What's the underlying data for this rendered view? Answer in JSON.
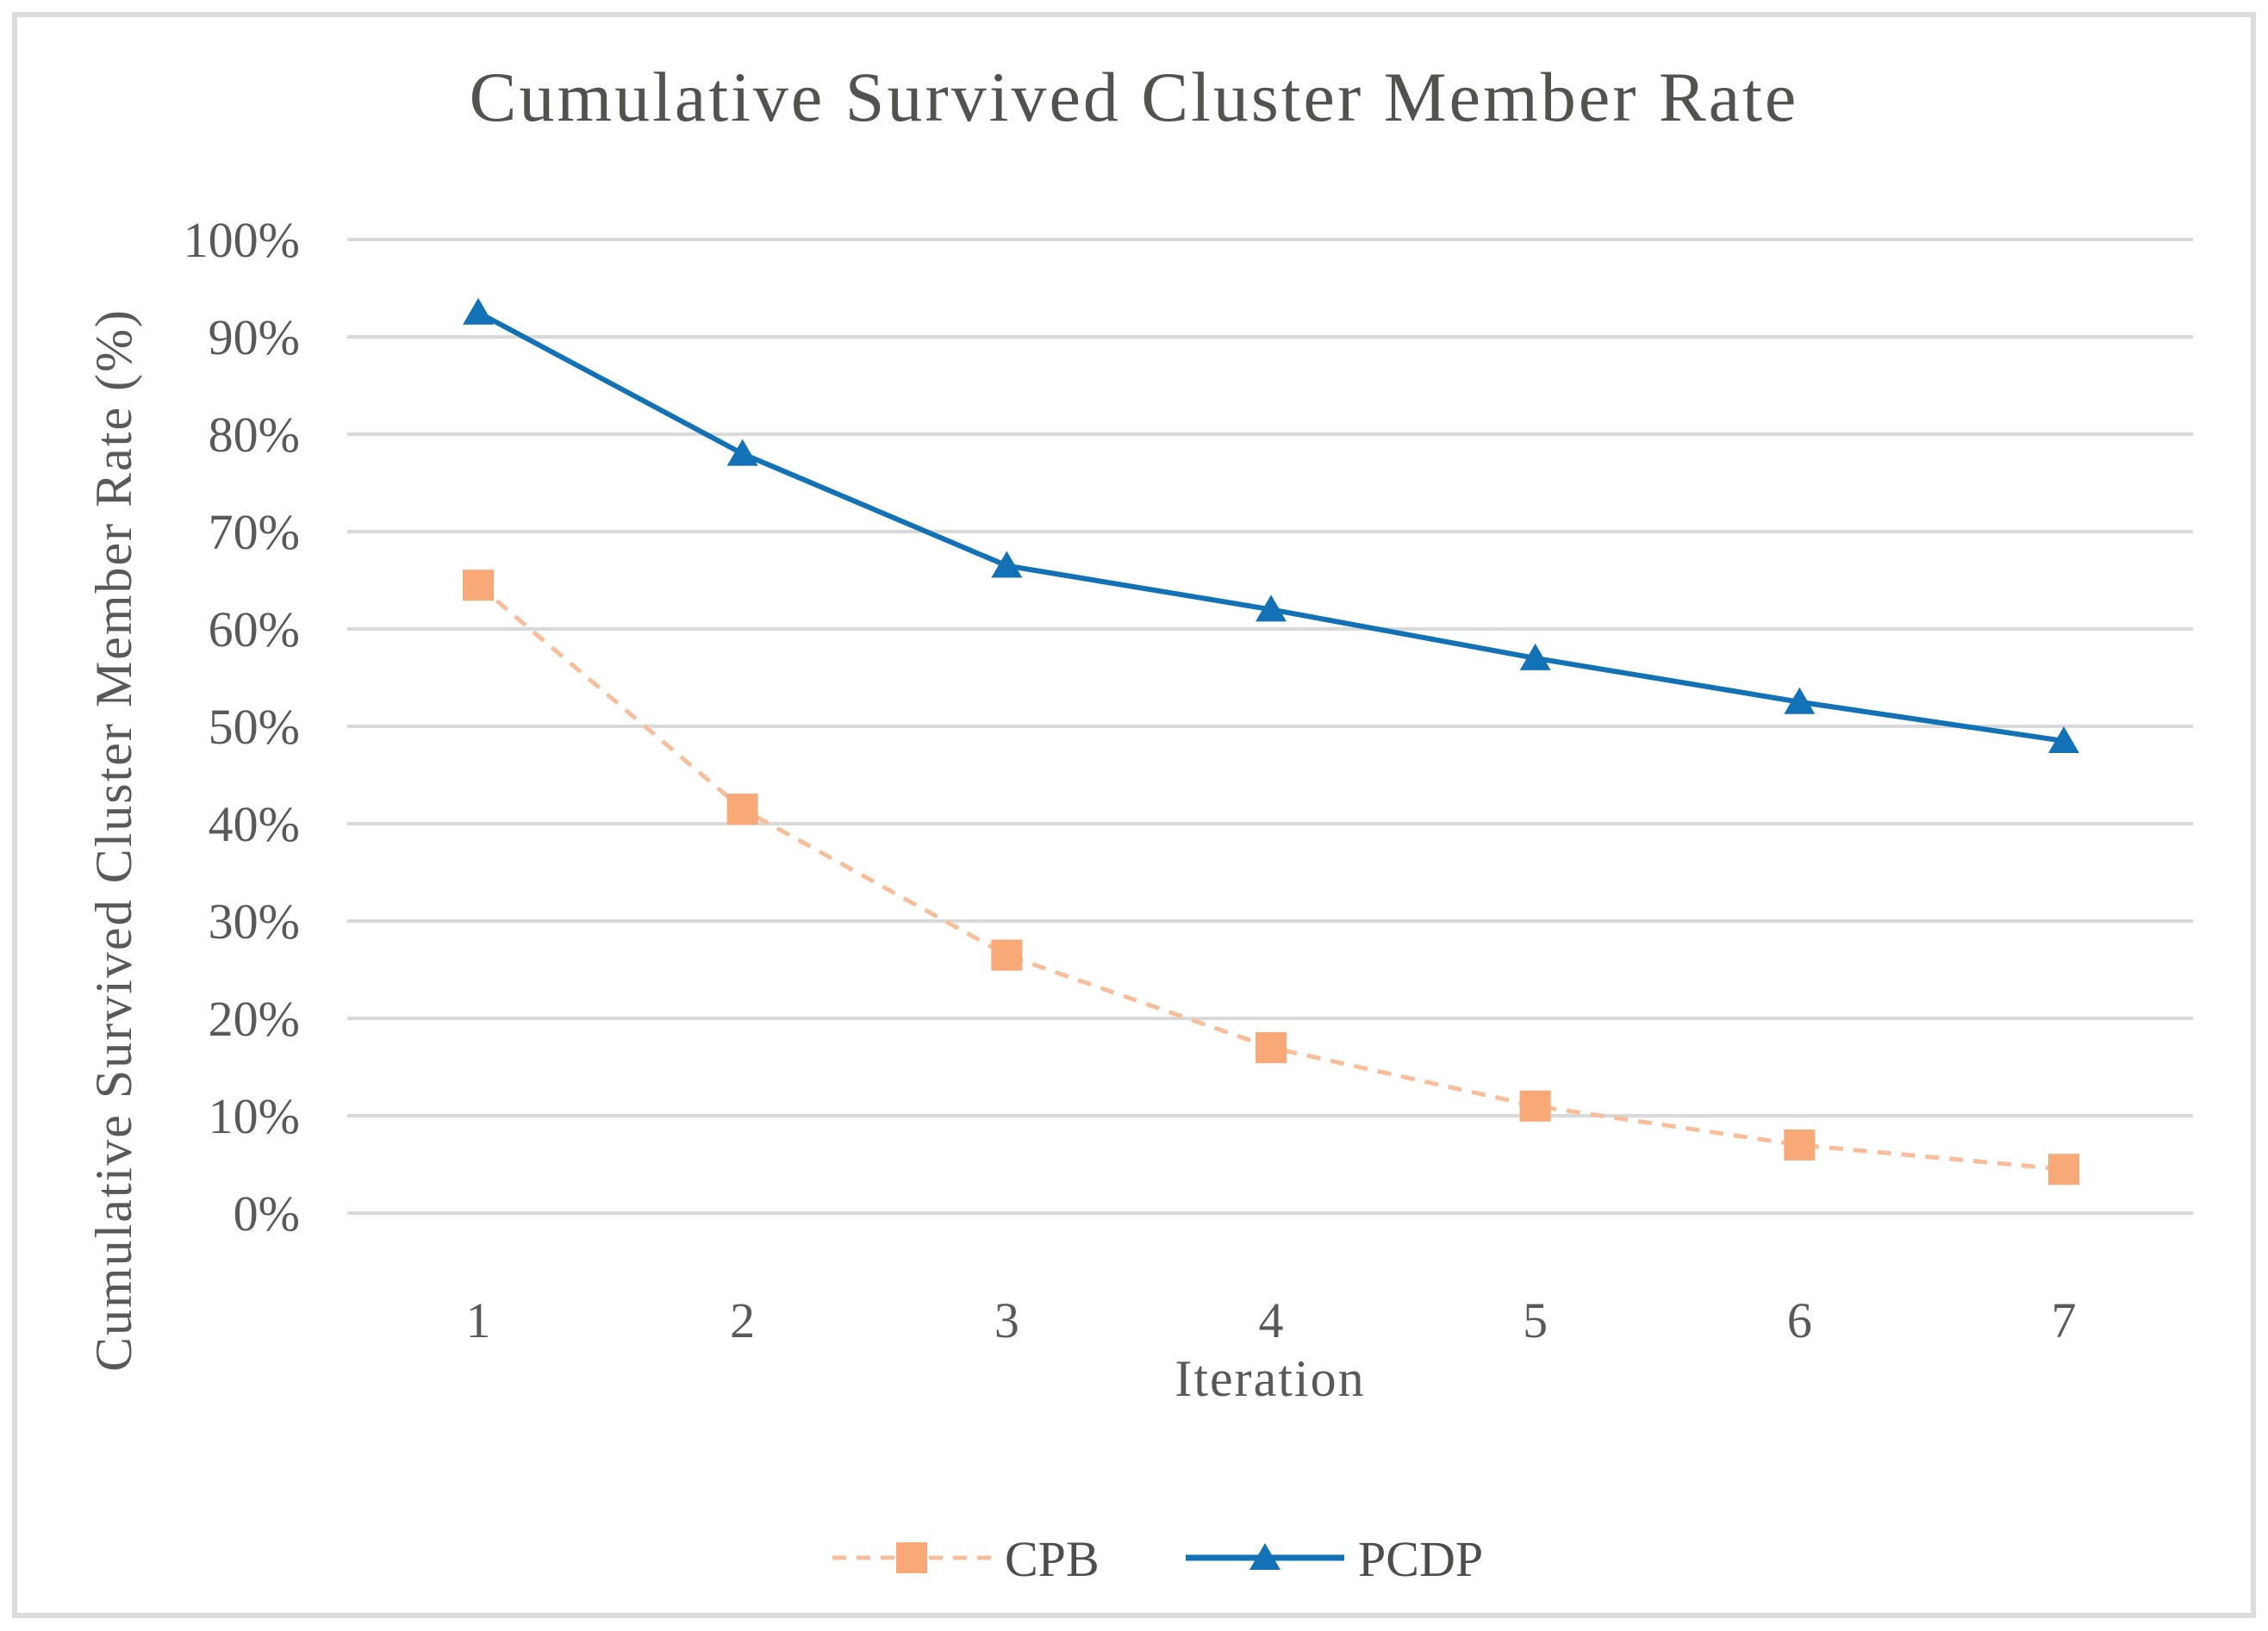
{
  "window": {
    "background": "#FFFFFF",
    "frame_border_color": "#DCDCDC"
  },
  "chart_data": {
    "type": "line",
    "title": "Cumulative Survived Cluster Member Rate",
    "xlabel": "Iteration",
    "ylabel": "Cumulative Survived Cluster Member Rate (%)",
    "categories": [
      "1",
      "2",
      "3",
      "4",
      "5",
      "6",
      "7"
    ],
    "x_values": [
      1,
      2,
      3,
      4,
      5,
      6,
      7
    ],
    "y_ticks": [
      "0%",
      "10%",
      "20%",
      "30%",
      "40%",
      "50%",
      "60%",
      "70%",
      "80%",
      "90%",
      "100%"
    ],
    "ylim": [
      0,
      100
    ],
    "grid": true,
    "legend_position": "bottom-center",
    "series": [
      {
        "name": "CPB",
        "marker": "square",
        "line_style": "dashed",
        "marker_color": "#F9A877",
        "line_color": "#F8BE9B",
        "values": [
          64.5,
          41.5,
          26.5,
          17,
          11,
          7,
          4.5
        ]
      },
      {
        "name": "PCDP",
        "marker": "triangle",
        "line_style": "solid",
        "marker_color": "#1272B5",
        "line_color": "#1272B5",
        "values": [
          92.5,
          78,
          66.5,
          62,
          57,
          52.5,
          48.5
        ]
      }
    ]
  },
  "style": {
    "gridline_color": "#D9D9D9",
    "tick_text_color": "#595959",
    "title_text_color": "#54524F"
  }
}
